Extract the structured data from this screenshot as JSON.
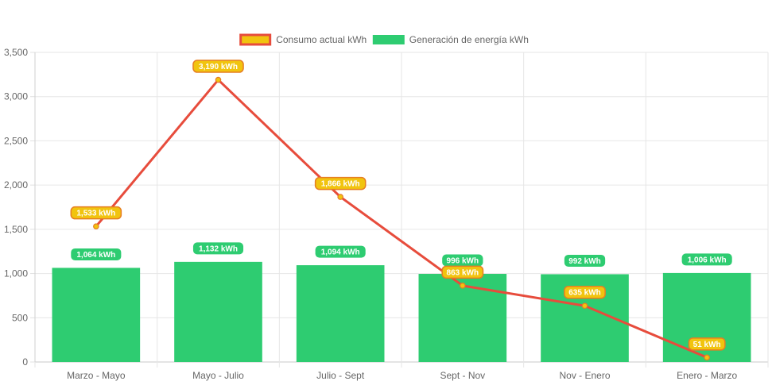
{
  "chart_data": {
    "type": "bar",
    "categories": [
      "Marzo - Mayo",
      "Mayo - Julio",
      "Julio - Sept",
      "Sept - Nov",
      "Nov - Enero",
      "Enero - Marzo"
    ],
    "series": [
      {
        "name": "Consumo actual kWh",
        "type": "line",
        "values": [
          1533,
          3190,
          1866,
          863,
          635,
          51
        ],
        "labels": [
          "1,533 kWh",
          "3,190 kWh",
          "1,866 kWh",
          "863 kWh",
          "635 kWh",
          "51 kWh"
        ],
        "line_color": "#e74c3c",
        "point_color": "#f1c40f",
        "label_bg": "#f1c40f",
        "label_border": "#e67e22"
      },
      {
        "name": "Generación de energía kWh",
        "type": "bar",
        "values": [
          1064,
          1132,
          1094,
          996,
          992,
          1006
        ],
        "labels": [
          "1,064 kWh",
          "1,132 kWh",
          "1,094 kWh",
          "996 kWh",
          "992 kWh",
          "1,006 kWh"
        ],
        "color": "#2ecc71"
      }
    ],
    "ylim": [
      0,
      3500
    ],
    "yticks": [
      0,
      500,
      1000,
      1500,
      2000,
      2500,
      3000,
      3500
    ],
    "ytick_labels": [
      "0",
      "500",
      "1,000",
      "1,500",
      "2,000",
      "2,500",
      "3,000",
      "3,500"
    ],
    "grid": true,
    "legend_position": "top"
  }
}
